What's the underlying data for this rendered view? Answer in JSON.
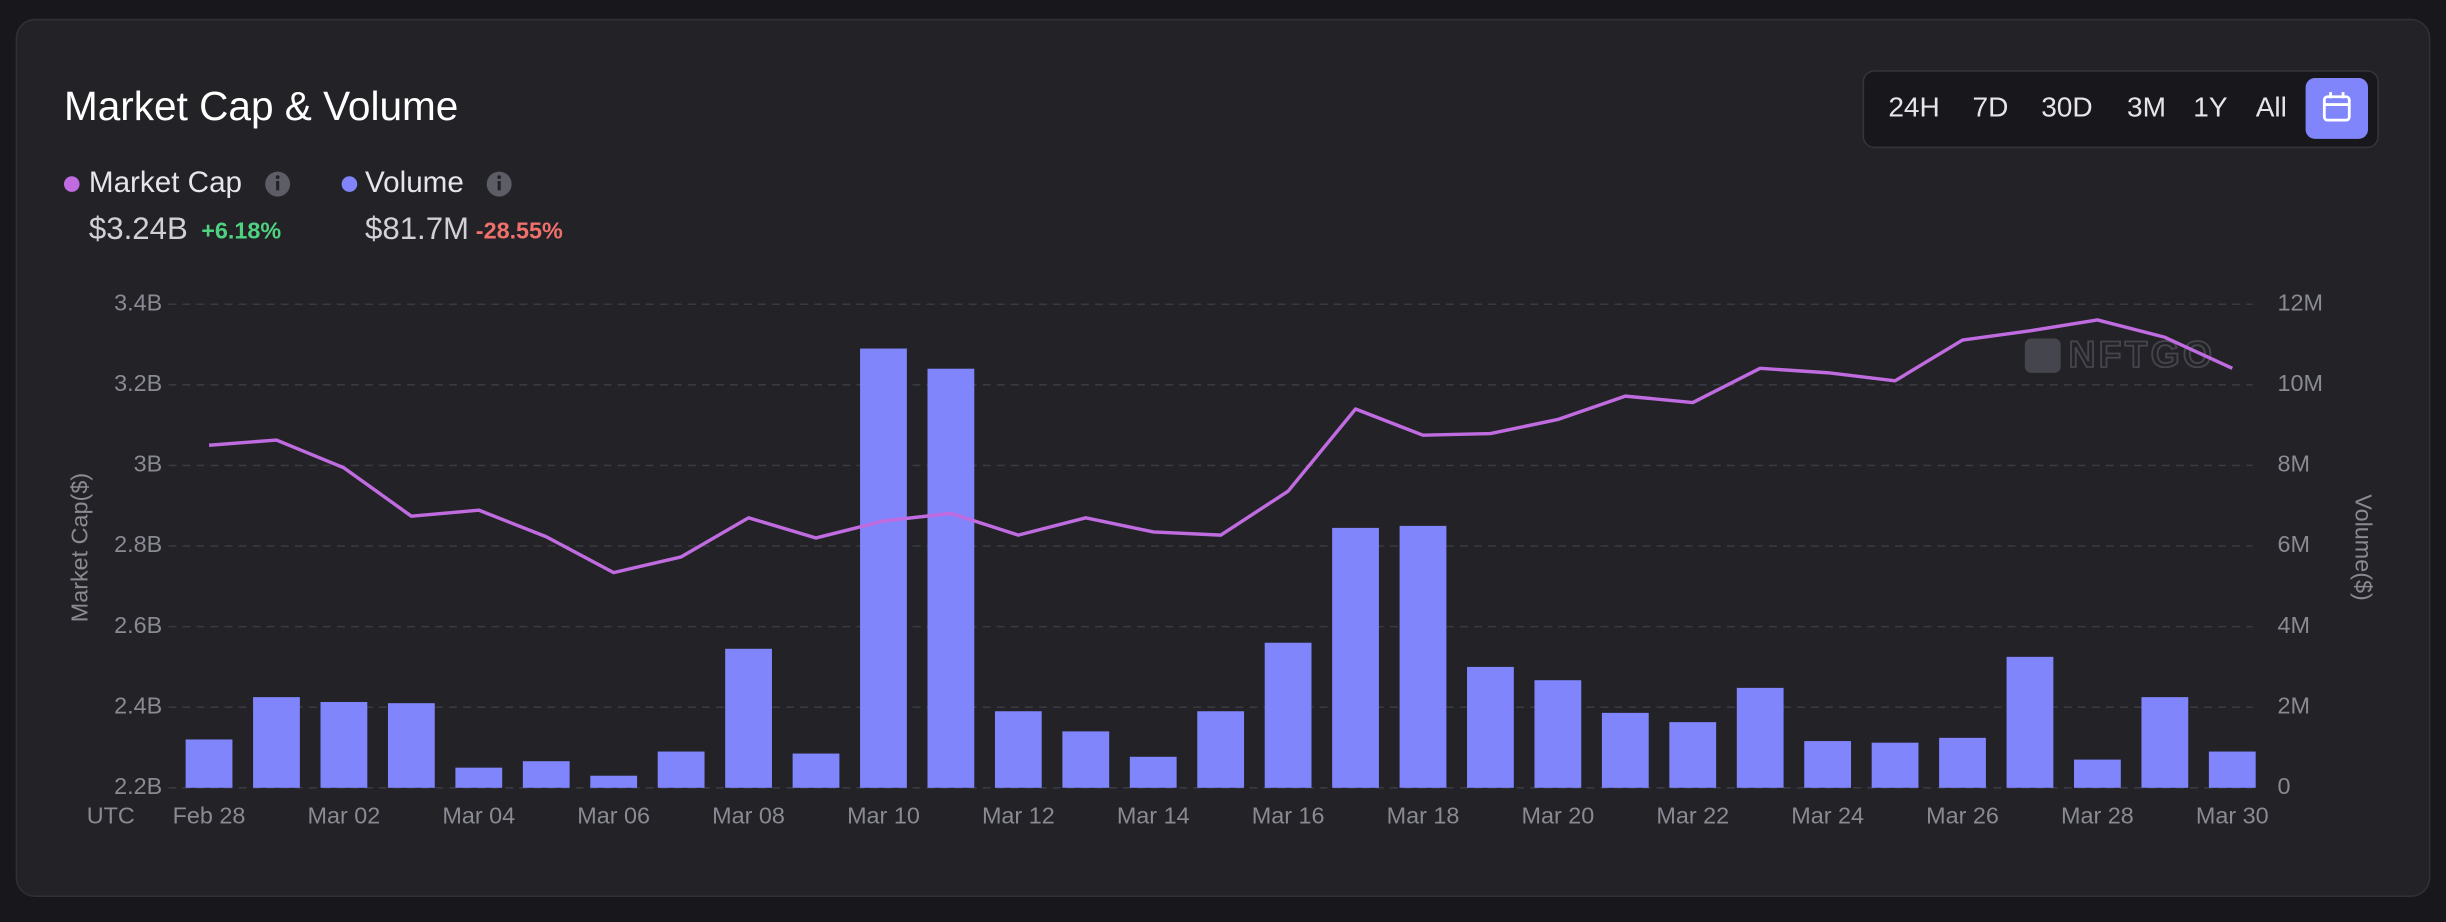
{
  "header": {
    "title": "Market Cap & Volume"
  },
  "toolbar": {
    "ranges": [
      "24H",
      "7D",
      "30D",
      "3M",
      "1Y",
      "All"
    ]
  },
  "watermark": "NFTGO",
  "chart_data": {
    "type": "combo",
    "x_note": "UTC",
    "ylabel": "Market Cap($)",
    "y2label": "Volume($)",
    "categories": [
      "Feb 28",
      null,
      "Mar 02",
      null,
      "Mar 04",
      null,
      "Mar 06",
      null,
      "Mar 08",
      null,
      "Mar 10",
      null,
      "Mar 12",
      null,
      "Mar 14",
      null,
      "Mar 16",
      null,
      "Mar 18",
      null,
      "Mar 20",
      null,
      "Mar 22",
      null,
      "Mar 24",
      null,
      "Mar 26",
      null,
      "Mar 28",
      null,
      "Mar 30"
    ],
    "series": [
      {
        "name": "Market Cap",
        "type": "line",
        "color": "#c06ce0",
        "summary": "$3.24B",
        "change": "+6.18%",
        "change_color": "#4fd17f",
        "values": [
          3.05,
          3.063,
          2.994,
          2.874,
          2.889,
          2.823,
          2.734,
          2.773,
          2.87,
          2.82,
          2.862,
          2.881,
          2.827,
          2.87,
          2.835,
          2.827,
          2.936,
          3.14,
          3.075,
          3.079,
          3.114,
          3.172,
          3.156,
          3.241,
          3.23,
          3.21,
          3.311,
          3.334,
          3.361,
          3.318,
          3.241
        ]
      },
      {
        "name": "Volume",
        "type": "bar",
        "axis": "y2",
        "color": "#8085fb",
        "summary": "$81.7M",
        "change": "-28.55%",
        "change_color": "#f0706c",
        "values": [
          1.2,
          2.25,
          2.13,
          2.1,
          0.5,
          0.66,
          0.3,
          0.9,
          3.45,
          0.85,
          10.9,
          10.4,
          1.9,
          1.4,
          0.77,
          1.9,
          3.6,
          6.45,
          6.5,
          3.0,
          2.67,
          1.86,
          1.63,
          2.48,
          1.16,
          1.12,
          1.24,
          3.25,
          0.7,
          2.25,
          0.9
        ]
      }
    ],
    "ylim": [
      2.2,
      3.4
    ],
    "yticks": [
      {
        "value": 2.2,
        "label": "2.2B"
      },
      {
        "value": 2.4,
        "label": "2.4B"
      },
      {
        "value": 2.6,
        "label": "2.6B"
      },
      {
        "value": 2.8,
        "label": "2.8B"
      },
      {
        "value": 3,
        "label": "3B"
      },
      {
        "value": 3.2,
        "label": "3.2B"
      },
      {
        "value": 3.4,
        "label": "3.4B"
      }
    ],
    "y2lim": [
      0,
      12
    ],
    "y2ticks": [
      0,
      {
        "value": 2,
        "label": "2M"
      },
      {
        "value": 4,
        "label": "4M"
      },
      {
        "value": 6,
        "label": "6M"
      },
      {
        "value": 8,
        "label": "8M"
      },
      {
        "value": 10,
        "label": "10M"
      },
      {
        "value": 12,
        "label": "12M"
      }
    ],
    "grid": true
  }
}
